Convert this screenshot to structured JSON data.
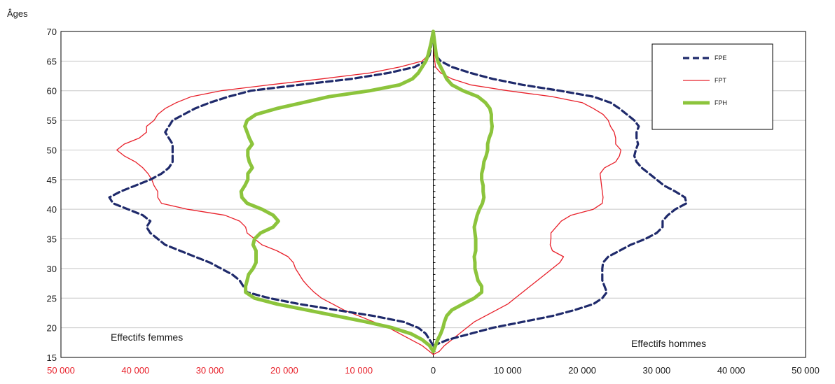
{
  "chart_data": {
    "type": "line",
    "ylabel": "Âges",
    "ylim": [
      15,
      70
    ],
    "xlim": [
      -50000,
      50000
    ],
    "y_ticks": [
      "15",
      "20",
      "25",
      "30",
      "35",
      "40",
      "45",
      "50",
      "55",
      "60",
      "65",
      "70"
    ],
    "x_ticks_left": [
      "50 000",
      "40 000",
      "30 000",
      "20 000",
      "10 000"
    ],
    "x_tick_zero": "0",
    "x_ticks_right": [
      "10 000",
      "20 000",
      "30 000",
      "40 000",
      "50 000"
    ],
    "left_tick_color": "#e8202a",
    "annotations": {
      "left": "Effectifs femmes",
      "right": "Effectifs hommes"
    },
    "legend_position": "top-right",
    "grid": true,
    "series": [
      {
        "name": "FPE",
        "color": "#1f2a6b",
        "style": "dashed",
        "women": [
          [
            17,
            0
          ],
          [
            18,
            500
          ],
          [
            19,
            1000
          ],
          [
            20,
            2000
          ],
          [
            21,
            4000
          ],
          [
            22,
            8000
          ],
          [
            23,
            13000
          ],
          [
            24,
            18000
          ],
          [
            25,
            22000
          ],
          [
            26,
            25000
          ],
          [
            27,
            25500
          ],
          [
            28,
            26000
          ],
          [
            29,
            27000
          ],
          [
            30,
            28500
          ],
          [
            31,
            30000
          ],
          [
            32,
            32000
          ],
          [
            33,
            34000
          ],
          [
            34,
            36000
          ],
          [
            35,
            37000
          ],
          [
            36,
            38000
          ],
          [
            37,
            38500
          ],
          [
            38,
            38000
          ],
          [
            39,
            39000
          ],
          [
            40,
            41000
          ],
          [
            41,
            43000
          ],
          [
            42,
            43500
          ],
          [
            43,
            42000
          ],
          [
            44,
            40000
          ],
          [
            45,
            38000
          ],
          [
            46,
            36500
          ],
          [
            47,
            35500
          ],
          [
            48,
            35000
          ],
          [
            49,
            35000
          ],
          [
            50,
            35000
          ],
          [
            51,
            35000
          ],
          [
            52,
            35500
          ],
          [
            53,
            36000
          ],
          [
            54,
            35500
          ],
          [
            55,
            35000
          ],
          [
            56,
            33500
          ],
          [
            57,
            32000
          ],
          [
            58,
            30000
          ],
          [
            59,
            27500
          ],
          [
            60,
            24500
          ],
          [
            61,
            18000
          ],
          [
            62,
            11000
          ],
          [
            63,
            6000
          ],
          [
            64,
            2500
          ],
          [
            65,
            1000
          ],
          [
            66,
            500
          ],
          [
            68,
            200
          ],
          [
            70,
            0
          ]
        ],
        "men": [
          [
            17,
            0
          ],
          [
            18,
            2000
          ],
          [
            19,
            5000
          ],
          [
            20,
            8000
          ],
          [
            21,
            12000
          ],
          [
            22,
            16000
          ],
          [
            23,
            19000
          ],
          [
            24,
            21500
          ],
          [
            25,
            22700
          ],
          [
            26,
            23300
          ],
          [
            27,
            23000
          ],
          [
            28,
            22700
          ],
          [
            29,
            22700
          ],
          [
            30,
            22700
          ],
          [
            31,
            22800
          ],
          [
            32,
            23500
          ],
          [
            33,
            25000
          ],
          [
            34,
            26500
          ],
          [
            35,
            28500
          ],
          [
            36,
            30000
          ],
          [
            37,
            30800
          ],
          [
            38,
            30800
          ],
          [
            39,
            31500
          ],
          [
            40,
            32500
          ],
          [
            41,
            34000
          ],
          [
            42,
            33800
          ],
          [
            43,
            32500
          ],
          [
            44,
            31000
          ],
          [
            45,
            30000
          ],
          [
            46,
            29000
          ],
          [
            47,
            28000
          ],
          [
            48,
            27300
          ],
          [
            49,
            27000
          ],
          [
            50,
            27200
          ],
          [
            51,
            27500
          ],
          [
            52,
            27300
          ],
          [
            53,
            27300
          ],
          [
            54,
            27600
          ],
          [
            55,
            27000
          ],
          [
            56,
            26000
          ],
          [
            57,
            25000
          ],
          [
            58,
            23800
          ],
          [
            59,
            21500
          ],
          [
            60,
            17000
          ],
          [
            61,
            12000
          ],
          [
            62,
            8000
          ],
          [
            63,
            5000
          ],
          [
            64,
            2500
          ],
          [
            65,
            1000
          ],
          [
            66,
            300
          ],
          [
            68,
            100
          ],
          [
            70,
            0
          ]
        ]
      },
      {
        "name": "FPT",
        "color": "#e8202a",
        "style": "solid",
        "women": [
          [
            15.5,
            0
          ],
          [
            16,
            500
          ],
          [
            17,
            1500
          ],
          [
            18,
            3000
          ],
          [
            19,
            4500
          ],
          [
            20,
            6000
          ],
          [
            21,
            8000
          ],
          [
            22,
            10000
          ],
          [
            23,
            12000
          ],
          [
            24,
            13500
          ],
          [
            25,
            15000
          ],
          [
            26,
            16000
          ],
          [
            27,
            16800
          ],
          [
            28,
            17500
          ],
          [
            29,
            18000
          ],
          [
            30,
            18500
          ],
          [
            31,
            18800
          ],
          [
            32,
            19500
          ],
          [
            33,
            21000
          ],
          [
            34,
            23000
          ],
          [
            35,
            24000
          ],
          [
            36,
            25000
          ],
          [
            37,
            25200
          ],
          [
            38,
            26000
          ],
          [
            39,
            28000
          ],
          [
            40,
            33000
          ],
          [
            41,
            36500
          ],
          [
            42,
            37000
          ],
          [
            43,
            37000
          ],
          [
            44,
            37500
          ],
          [
            45,
            37800
          ],
          [
            46,
            38300
          ],
          [
            47,
            39000
          ],
          [
            48,
            40000
          ],
          [
            49,
            41500
          ],
          [
            50,
            42500
          ],
          [
            51,
            41500
          ],
          [
            52,
            39500
          ],
          [
            53,
            38500
          ],
          [
            54,
            38500
          ],
          [
            55,
            37500
          ],
          [
            56,
            37000
          ],
          [
            57,
            36000
          ],
          [
            58,
            34500
          ],
          [
            59,
            32500
          ],
          [
            60,
            28500
          ],
          [
            61,
            22000
          ],
          [
            62,
            15000
          ],
          [
            63,
            8500
          ],
          [
            64,
            4500
          ],
          [
            65,
            1500
          ],
          [
            66,
            700
          ],
          [
            68,
            300
          ],
          [
            70,
            0
          ]
        ],
        "men": [
          [
            15.5,
            0
          ],
          [
            16,
            800
          ],
          [
            17,
            1500
          ],
          [
            18,
            2500
          ],
          [
            19,
            3500
          ],
          [
            20,
            4500
          ],
          [
            21,
            5500
          ],
          [
            22,
            7000
          ],
          [
            23,
            8500
          ],
          [
            24,
            10000
          ],
          [
            25,
            11000
          ],
          [
            26,
            12000
          ],
          [
            27,
            13000
          ],
          [
            28,
            14000
          ],
          [
            29,
            15000
          ],
          [
            30,
            16000
          ],
          [
            31,
            17000
          ],
          [
            32,
            17500
          ],
          [
            33,
            16000
          ],
          [
            34,
            15700
          ],
          [
            35,
            15800
          ],
          [
            36,
            15800
          ],
          [
            37,
            16500
          ],
          [
            38,
            17200
          ],
          [
            39,
            18500
          ],
          [
            40,
            21500
          ],
          [
            41,
            22700
          ],
          [
            42,
            22800
          ],
          [
            43,
            22700
          ],
          [
            44,
            22600
          ],
          [
            45,
            22500
          ],
          [
            46,
            22400
          ],
          [
            47,
            23000
          ],
          [
            48,
            24500
          ],
          [
            49,
            25000
          ],
          [
            50,
            25200
          ],
          [
            51,
            24500
          ],
          [
            52,
            24500
          ],
          [
            53,
            24300
          ],
          [
            54,
            23800
          ],
          [
            55,
            23500
          ],
          [
            56,
            22800
          ],
          [
            57,
            21500
          ],
          [
            58,
            20000
          ],
          [
            59,
            16000
          ],
          [
            60,
            10000
          ],
          [
            61,
            5000
          ],
          [
            62,
            2500
          ],
          [
            63,
            1000
          ],
          [
            64,
            300
          ],
          [
            66,
            100
          ],
          [
            70,
            0
          ]
        ]
      },
      {
        "name": "FPH",
        "color": "#8cc43c",
        "style": "thick",
        "women": [
          [
            16,
            0
          ],
          [
            17,
            500
          ],
          [
            18,
            1500
          ],
          [
            19,
            3000
          ],
          [
            20,
            5500
          ],
          [
            21,
            9000
          ],
          [
            22,
            13000
          ],
          [
            23,
            17000
          ],
          [
            24,
            21000
          ],
          [
            25,
            24000
          ],
          [
            26,
            25200
          ],
          [
            27,
            25200
          ],
          [
            28,
            25000
          ],
          [
            29,
            24800
          ],
          [
            30,
            24200
          ],
          [
            31,
            23800
          ],
          [
            32,
            23800
          ],
          [
            33,
            23800
          ],
          [
            34,
            24200
          ],
          [
            35,
            24000
          ],
          [
            36,
            23200
          ],
          [
            37,
            21500
          ],
          [
            38,
            20800
          ],
          [
            39,
            21500
          ],
          [
            40,
            23000
          ],
          [
            41,
            25000
          ],
          [
            42,
            25700
          ],
          [
            43,
            25800
          ],
          [
            44,
            25300
          ],
          [
            45,
            24900
          ],
          [
            46,
            24900
          ],
          [
            47,
            24300
          ],
          [
            48,
            24700
          ],
          [
            49,
            24900
          ],
          [
            50,
            24900
          ],
          [
            51,
            24300
          ],
          [
            52,
            24700
          ],
          [
            53,
            25000
          ],
          [
            54,
            25300
          ],
          [
            55,
            25000
          ],
          [
            56,
            23800
          ],
          [
            57,
            21000
          ],
          [
            58,
            17500
          ],
          [
            59,
            14000
          ],
          [
            60,
            8500
          ],
          [
            61,
            4500
          ],
          [
            62,
            2800
          ],
          [
            63,
            2000
          ],
          [
            64,
            1500
          ],
          [
            65,
            1000
          ],
          [
            66,
            700
          ],
          [
            68,
            300
          ],
          [
            70,
            0
          ]
        ],
        "men": [
          [
            16,
            0
          ],
          [
            17,
            300
          ],
          [
            18,
            600
          ],
          [
            19,
            1000
          ],
          [
            20,
            1300
          ],
          [
            21,
            1500
          ],
          [
            22,
            1800
          ],
          [
            23,
            2500
          ],
          [
            24,
            4000
          ],
          [
            25,
            5500
          ],
          [
            26,
            6500
          ],
          [
            27,
            6500
          ],
          [
            28,
            6000
          ],
          [
            29,
            5800
          ],
          [
            30,
            5600
          ],
          [
            31,
            5600
          ],
          [
            32,
            5500
          ],
          [
            33,
            5700
          ],
          [
            34,
            5700
          ],
          [
            35,
            5700
          ],
          [
            36,
            5600
          ],
          [
            37,
            5500
          ],
          [
            38,
            5700
          ],
          [
            39,
            5900
          ],
          [
            40,
            6200
          ],
          [
            41,
            6600
          ],
          [
            42,
            6800
          ],
          [
            43,
            6700
          ],
          [
            44,
            6700
          ],
          [
            45,
            6500
          ],
          [
            46,
            6500
          ],
          [
            47,
            6700
          ],
          [
            48,
            6800
          ],
          [
            49,
            7100
          ],
          [
            50,
            7300
          ],
          [
            51,
            7300
          ],
          [
            52,
            7500
          ],
          [
            53,
            7800
          ],
          [
            54,
            7900
          ],
          [
            55,
            7800
          ],
          [
            56,
            7800
          ],
          [
            57,
            7600
          ],
          [
            58,
            7000
          ],
          [
            59,
            6000
          ],
          [
            60,
            4000
          ],
          [
            61,
            2500
          ],
          [
            62,
            1800
          ],
          [
            63,
            1400
          ],
          [
            64,
            1000
          ],
          [
            65,
            600
          ],
          [
            66,
            400
          ],
          [
            68,
            200
          ],
          [
            70,
            0
          ]
        ]
      }
    ]
  }
}
